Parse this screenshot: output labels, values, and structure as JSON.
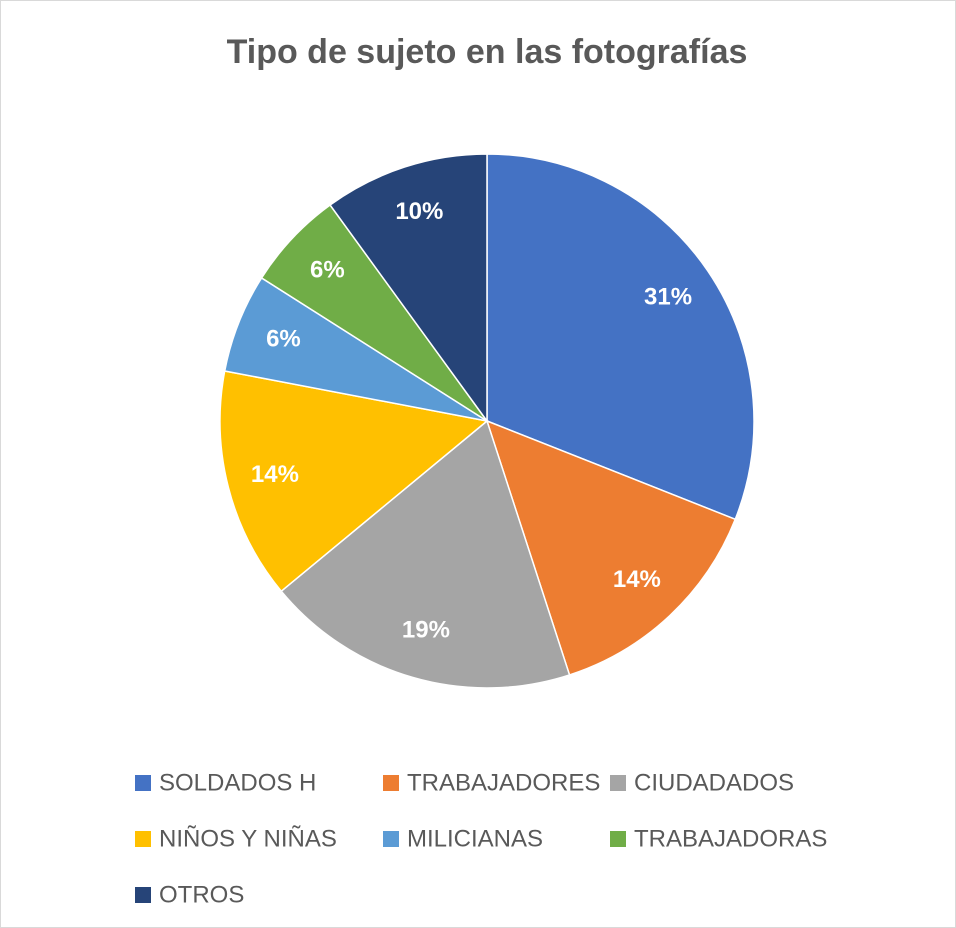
{
  "chart_data": {
    "type": "pie",
    "title": "Tipo de sujeto en las fotografías",
    "categories": [
      "SOLDADOS H",
      "TRABAJADORES",
      "CIUDADADOS",
      "NIÑOS Y NIÑAS",
      "MILICIANAS",
      "TRABAJADORAS",
      "OTROS"
    ],
    "values": [
      31,
      14,
      19,
      14,
      6,
      6,
      10
    ],
    "value_labels": [
      "31%",
      "14%",
      "19%",
      "14%",
      "6%",
      "6%",
      "10%"
    ],
    "colors": [
      "#4472c4",
      "#ed7d31",
      "#a5a5a5",
      "#ffc000",
      "#5b9bd5",
      "#70ad47",
      "#264478"
    ],
    "legend": "bottom"
  }
}
